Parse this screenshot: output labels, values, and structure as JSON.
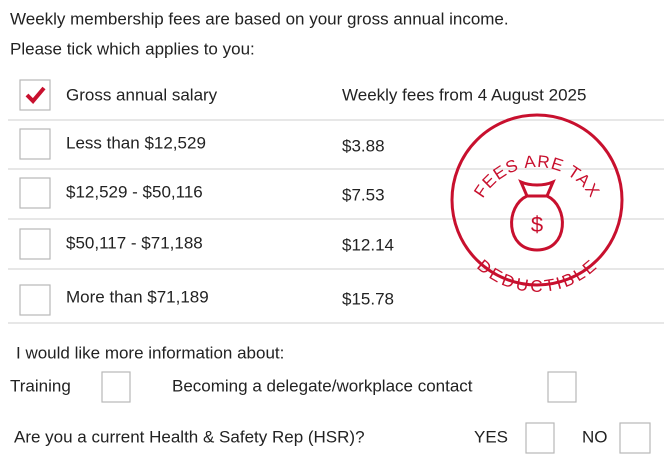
{
  "intro": [
    "Weekly membership fees are based on your gross annual income.",
    "Please tick which applies to you:"
  ],
  "table": {
    "header": [
      "Gross annual salary",
      "Weekly fees from 4 August 2025"
    ],
    "rows": [
      [
        "Less than $12,529",
        "$3.88"
      ],
      [
        "$12,529 - $50,116",
        "$7.53"
      ],
      [
        "$50,117 - $71,188",
        "$12.14"
      ],
      [
        "More than $71,189",
        "$15.78"
      ]
    ]
  },
  "stamp": {
    "top": "FEES ARE TAX",
    "bottom": "DEDUCTIBLE",
    "symbol": "$"
  },
  "info": {
    "prompt": "I would like more information about:",
    "options": [
      "Training",
      "Becoming a delegate/workplace contact"
    ]
  },
  "hsr": {
    "question": "Are you a current Health & Safety Rep (HSR)?",
    "yes": "YES",
    "no": "NO"
  }
}
